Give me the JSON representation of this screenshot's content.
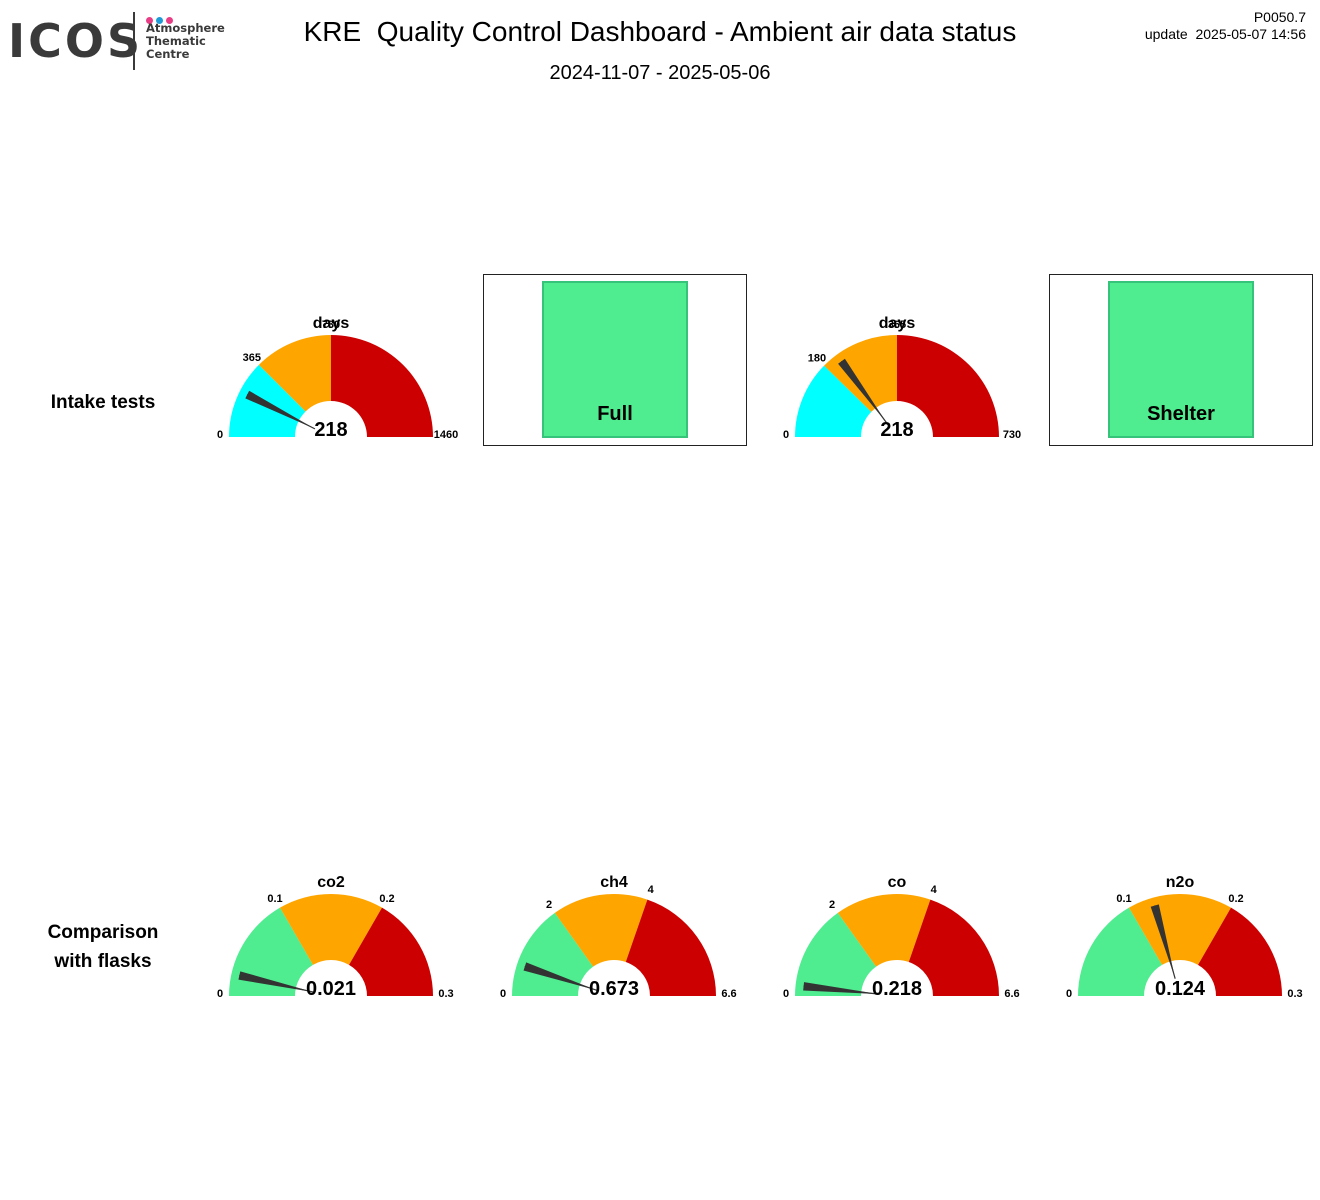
{
  "header": {
    "logo": {
      "text": "ICOS",
      "subtitle": [
        "Atmosphere",
        "Thematic",
        "Centre"
      ],
      "dot_colors": [
        "#e83d84",
        "#1e9bd7",
        "#e83d84"
      ],
      "text_color": "#3a3a3a"
    },
    "title": "KRE  Quality Control Dashboard - Ambient air data status",
    "date_range": "2024-11-07 - 2025-05-06",
    "code": "P0050.7",
    "update": "update  2025-05-07 14:56"
  },
  "rows": {
    "intake_tests": {
      "label_line1": "Intake tests",
      "label_line2": ""
    },
    "comparison": {
      "label_line1": "Comparison",
      "label_line2": "with flasks"
    }
  },
  "colors": {
    "cyan": "#00ffff",
    "orange": "#ffa500",
    "red": "#cc0000",
    "green": "#4fec90",
    "needle": "#333333",
    "box_fill": "#4fec90"
  },
  "gauges": [
    {
      "id": "intake-days-1",
      "title": "days",
      "value": 218,
      "value_label": "218",
      "min": 0,
      "max": 1460,
      "min_label": "0",
      "max_label": "1460",
      "ticks": [
        {
          "value": 365,
          "label": "365"
        },
        {
          "value": 730,
          "label": "730"
        }
      ],
      "bands": [
        {
          "from": 0,
          "to": 365,
          "color": "cyan"
        },
        {
          "from": 365,
          "to": 730,
          "color": "orange"
        },
        {
          "from": 730,
          "to": 1460,
          "color": "red"
        }
      ]
    },
    {
      "id": "intake-days-2",
      "title": "days",
      "value": 218,
      "value_label": "218",
      "min": 0,
      "max": 730,
      "min_label": "0",
      "max_label": "730",
      "ticks": [
        {
          "value": 180,
          "label": "180"
        },
        {
          "value": 365,
          "label": "365"
        }
      ],
      "bands": [
        {
          "from": 0,
          "to": 180,
          "color": "cyan"
        },
        {
          "from": 180,
          "to": 365,
          "color": "orange"
        },
        {
          "from": 365,
          "to": 730,
          "color": "red"
        }
      ]
    },
    {
      "id": "flask-co2",
      "title": "co2",
      "value": 0.021,
      "value_label": "0.021",
      "min": 0,
      "max": 0.3,
      "min_label": "0",
      "max_label": "0.3",
      "ticks": [
        {
          "value": 0.1,
          "label": "0.1"
        },
        {
          "value": 0.2,
          "label": "0.2"
        }
      ],
      "bands": [
        {
          "from": 0,
          "to": 0.1,
          "color": "green"
        },
        {
          "from": 0.1,
          "to": 0.2,
          "color": "orange"
        },
        {
          "from": 0.2,
          "to": 0.3,
          "color": "red"
        }
      ]
    },
    {
      "id": "flask-ch4",
      "title": "ch4",
      "value": 0.673,
      "value_label": "0.673",
      "min": 0,
      "max": 6.6,
      "min_label": "0",
      "max_label": "6.6",
      "ticks": [
        {
          "value": 2,
          "label": "2"
        },
        {
          "value": 4,
          "label": "4"
        }
      ],
      "bands": [
        {
          "from": 0,
          "to": 2,
          "color": "green"
        },
        {
          "from": 2,
          "to": 4,
          "color": "orange"
        },
        {
          "from": 4,
          "to": 6.6,
          "color": "red"
        }
      ]
    },
    {
      "id": "flask-co",
      "title": "co",
      "value": 0.218,
      "value_label": "0.218",
      "min": 0,
      "max": 6.6,
      "min_label": "0",
      "max_label": "6.6",
      "ticks": [
        {
          "value": 2,
          "label": "2"
        },
        {
          "value": 4,
          "label": "4"
        }
      ],
      "bands": [
        {
          "from": 0,
          "to": 2,
          "color": "green"
        },
        {
          "from": 2,
          "to": 4,
          "color": "orange"
        },
        {
          "from": 4,
          "to": 6.6,
          "color": "red"
        }
      ]
    },
    {
      "id": "flask-n2o",
      "title": "n2o",
      "value": 0.124,
      "value_label": "0.124",
      "min": 0,
      "max": 0.3,
      "min_label": "0",
      "max_label": "0.3",
      "ticks": [
        {
          "value": 0.1,
          "label": "0.1"
        },
        {
          "value": 0.2,
          "label": "0.2"
        }
      ],
      "bands": [
        {
          "from": 0,
          "to": 0.1,
          "color": "green"
        },
        {
          "from": 0.1,
          "to": 0.2,
          "color": "orange"
        },
        {
          "from": 0.2,
          "to": 0.3,
          "color": "red"
        }
      ]
    }
  ],
  "status_boxes": [
    {
      "id": "intake-type",
      "label": "Full",
      "color": "box_fill"
    },
    {
      "id": "intake-location",
      "label": "Shelter",
      "color": "box_fill"
    }
  ]
}
